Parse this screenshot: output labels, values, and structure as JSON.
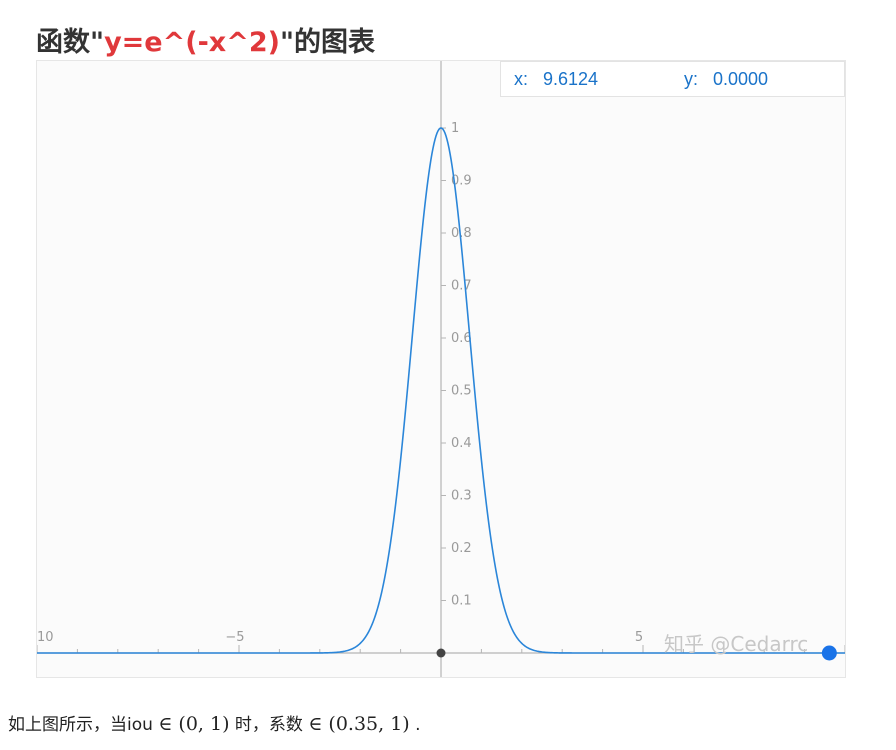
{
  "title": {
    "prefix": "函数\"",
    "function": "y=e^(-x^2)",
    "suffix": "\"的图表"
  },
  "readout": {
    "x_label": "x:",
    "x_value": "9.6124",
    "y_label": "y:",
    "y_value": "0.0000"
  },
  "chart_data": {
    "type": "line",
    "function": "y=e^(-x^2)",
    "xlim": [
      -10,
      10
    ],
    "ylim": [
      -0.02,
      1.1
    ],
    "x_ticks": [
      "10",
      "−5",
      "5"
    ],
    "y_ticks": [
      "0.1",
      "0.2",
      "0.3",
      "0.4",
      "0.5",
      "0.6",
      "0.7",
      "0.8",
      "0.9",
      "1"
    ],
    "origin_point": [
      0,
      0
    ],
    "highlight_point": [
      9.6124,
      0.0
    ],
    "colors": {
      "curve": "#2b86d9",
      "highlight": "#1a73e8",
      "axis": "#b5b5b5",
      "origin": "#444444"
    }
  },
  "watermark": "知乎 @Cedarrc",
  "caption": {
    "text_1": "如上图所示，当iou",
    "math_1": "∈ (0, 1)",
    "text_2": "时，系数",
    "math_2": "∈ (0.35, 1)",
    "text_3": "."
  }
}
